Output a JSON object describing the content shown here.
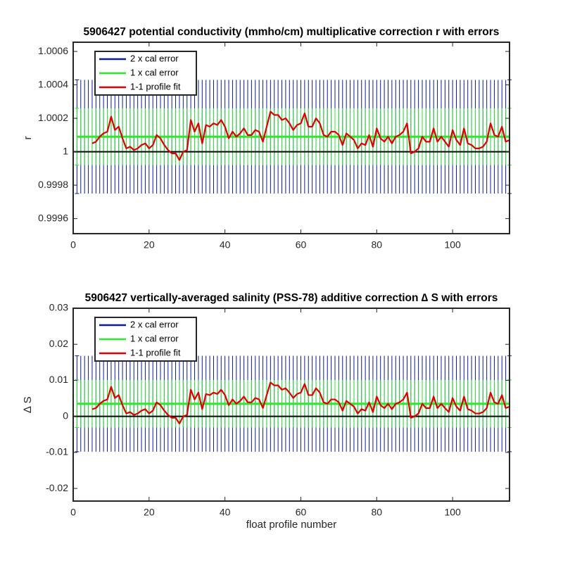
{
  "chart_data": [
    {
      "type": "line",
      "title": "5906427 potential conductivity (mmho/cm) multiplicative correction r with errors",
      "ylabel": "r",
      "x": [
        1,
        2,
        3,
        4,
        5,
        6,
        7,
        8,
        9,
        10,
        11,
        12,
        13,
        14,
        15,
        16,
        17,
        18,
        19,
        20,
        21,
        22,
        23,
        24,
        25,
        26,
        27,
        28,
        29,
        30,
        31,
        32,
        33,
        34,
        35,
        36,
        37,
        38,
        39,
        40,
        41,
        42,
        43,
        44,
        45,
        46,
        47,
        48,
        49,
        50,
        51,
        52,
        53,
        54,
        55,
        56,
        57,
        58,
        59,
        60,
        61,
        62,
        63,
        64,
        65,
        66,
        67,
        68,
        69,
        70,
        71,
        72,
        73,
        74,
        75,
        76,
        77,
        78,
        79,
        80,
        81,
        82,
        83,
        84,
        85,
        86,
        87,
        88,
        89,
        90,
        91,
        92,
        93,
        94,
        95,
        96,
        97,
        98,
        99,
        100,
        101,
        102,
        103,
        104,
        105,
        106,
        107,
        108,
        109,
        110,
        111,
        112,
        113,
        114,
        115
      ],
      "xlim": [
        0,
        115
      ],
      "xticks": [
        0,
        20,
        40,
        60,
        80,
        100
      ],
      "ylim": [
        0.99951,
        1.000655
      ],
      "yticks": [
        0.9996,
        0.9998,
        1,
        1.0002,
        1.0004,
        1.0006
      ],
      "hline": 1,
      "legend": "upper left",
      "series": [
        {
          "name": "2 x cal error",
          "color": "#0b1a9e",
          "error": 0.00034,
          "values": [
            1.00009,
            1.00009,
            1.00009,
            1.00009,
            1.00009,
            1.00009,
            1.00009,
            1.00009,
            1.00009,
            1.00009,
            1.00009,
            1.00009,
            1.00009,
            1.00009,
            1.00009,
            1.00009,
            1.00009,
            1.00009,
            1.00009,
            1.00009,
            1.00009,
            1.00009,
            1.00009,
            1.00009,
            1.00009,
            1.00009,
            1.00009,
            1.00009,
            1.00009,
            1.00009,
            1.00009,
            1.00009,
            1.00009,
            1.00009,
            1.00009,
            1.00009,
            1.00009,
            1.00009,
            1.00009,
            1.00009,
            1.00009,
            1.00009,
            1.00009,
            1.00009,
            1.00009,
            1.00009,
            1.00009,
            1.00009,
            1.00009,
            1.00009,
            1.00009,
            1.00009,
            1.00009,
            1.00009,
            1.00009,
            1.00009,
            1.00009,
            1.00009,
            1.00009,
            1.00009,
            1.00009,
            1.00009,
            1.00009,
            1.00009,
            1.00009,
            1.00009,
            1.00009,
            1.00009,
            1.00009,
            1.00009,
            1.00009,
            1.00009,
            1.00009,
            1.00009,
            1.00009,
            1.00009,
            1.00009,
            1.00009,
            1.00009,
            1.00009,
            1.00009,
            1.00009,
            1.00009,
            1.00009,
            1.00009,
            1.00009,
            1.00009,
            1.00009,
            1.00009,
            1.00009,
            1.00009,
            1.00009,
            1.00009,
            1.00009,
            1.00009,
            1.00009,
            1.00009,
            1.00009,
            1.00009,
            1.00009,
            1.00009,
            1.00009,
            1.00009,
            1.00009,
            1.00009,
            1.00009,
            1.00009,
            1.00009,
            1.00009,
            1.00009,
            1.00009,
            1.00009,
            1.00009,
            1.00009,
            1.00009
          ]
        },
        {
          "name": "1 x cal error",
          "color": "#2ee82e",
          "error": 0.00017,
          "values": [
            1.00009,
            1.00009,
            1.00009,
            1.00009,
            1.00009,
            1.00009,
            1.00009,
            1.00009,
            1.00009,
            1.00009,
            1.00009,
            1.00009,
            1.00009,
            1.00009,
            1.00009,
            1.00009,
            1.00009,
            1.00009,
            1.00009,
            1.00009,
            1.00009,
            1.00009,
            1.00009,
            1.00009,
            1.00009,
            1.00009,
            1.00009,
            1.00009,
            1.00009,
            1.00009,
            1.00009,
            1.00009,
            1.00009,
            1.00009,
            1.00009,
            1.00009,
            1.00009,
            1.00009,
            1.00009,
            1.00009,
            1.00009,
            1.00009,
            1.00009,
            1.00009,
            1.00009,
            1.00009,
            1.00009,
            1.00009,
            1.00009,
            1.00009,
            1.00009,
            1.00009,
            1.00009,
            1.00009,
            1.00009,
            1.00009,
            1.00009,
            1.00009,
            1.00009,
            1.00009,
            1.00009,
            1.00009,
            1.00009,
            1.00009,
            1.00009,
            1.00009,
            1.00009,
            1.00009,
            1.00009,
            1.00009,
            1.00009,
            1.00009,
            1.00009,
            1.00009,
            1.00009,
            1.00009,
            1.00009,
            1.00009,
            1.00009,
            1.00009,
            1.00009,
            1.00009,
            1.00009,
            1.00009,
            1.00009,
            1.00009,
            1.00009,
            1.00009,
            1.00009,
            1.00009,
            1.00009,
            1.00009,
            1.00009,
            1.00009,
            1.00009,
            1.00009,
            1.00009,
            1.00009,
            1.00009,
            1.00009,
            1.00009,
            1.00009,
            1.00009,
            1.00009,
            1.00009,
            1.00009,
            1.00009,
            1.00009,
            1.00009,
            1.00009,
            1.00009,
            1.00009,
            1.00009,
            1.00009,
            1.00009
          ]
        },
        {
          "name": "1-1 profile fit",
          "color": "#e00000",
          "values": [
            null,
            null,
            null,
            null,
            1.00005,
            1.00006,
            1.00009,
            1.00011,
            1.00012,
            1.00021,
            1.00013,
            1.00015,
            1.00008,
            1.00002,
            1.00003,
            1.00001,
            1.00002,
            1.00004,
            1.00005,
            1.00002,
            1.00004,
            1.0001,
            1.00008,
            1.00004,
            1.00001,
            0.99999,
            0.99999,
            0.99995,
            1,
            1.00001,
            1.00019,
            1.00012,
            1.00017,
            1.00005,
            1.00016,
            1.00015,
            1.00017,
            1.00016,
            1.00019,
            1.00015,
            1.00008,
            1.00012,
            1.00009,
            1.00011,
            1.00014,
            1.0001,
            1.0001,
            1.00013,
            1.00012,
            1.00006,
            1.00015,
            1.00024,
            1.00022,
            1.00022,
            1.00019,
            1.0002,
            1.00017,
            1.00013,
            1.00016,
            1.00017,
            1.00023,
            1.00015,
            1.00015,
            1.0002,
            1.00017,
            1.0001,
            1.00009,
            1.00012,
            1.00012,
            1.0001,
            1.00004,
            1.00011,
            1.00009,
            1.00007,
            1.00002,
            1.00005,
            1.00004,
            1.0001,
            1.00003,
            1.00014,
            1.00008,
            1.00006,
            1.00009,
            1.00005,
            1.00009,
            1.0001,
            1.00012,
            1.00017,
            0.99999,
            1,
            1.00002,
            1.00009,
            1.00006,
            1.00006,
            1.00014,
            1.00006,
            1.00009,
            1.00006,
            1.00003,
            1.00013,
            1.00007,
            1.00004,
            1.00014,
            1.00005,
            1.00004,
            1.00002,
            1.00002,
            1.00003,
            1.00006,
            1.00017,
            1.0001,
            1.00009,
            1.00015,
            1.00006,
            1.00007
          ]
        }
      ]
    },
    {
      "type": "line",
      "title": "5906427 vertically-averaged salinity (PSS-78) additive correction ∆ S with errors",
      "ylabel": "∆ S",
      "xlabel": "float profile number",
      "x": [
        1,
        2,
        3,
        4,
        5,
        6,
        7,
        8,
        9,
        10,
        11,
        12,
        13,
        14,
        15,
        16,
        17,
        18,
        19,
        20,
        21,
        22,
        23,
        24,
        25,
        26,
        27,
        28,
        29,
        30,
        31,
        32,
        33,
        34,
        35,
        36,
        37,
        38,
        39,
        40,
        41,
        42,
        43,
        44,
        45,
        46,
        47,
        48,
        49,
        50,
        51,
        52,
        53,
        54,
        55,
        56,
        57,
        58,
        59,
        60,
        61,
        62,
        63,
        64,
        65,
        66,
        67,
        68,
        69,
        70,
        71,
        72,
        73,
        74,
        75,
        76,
        77,
        78,
        79,
        80,
        81,
        82,
        83,
        84,
        85,
        86,
        87,
        88,
        89,
        90,
        91,
        92,
        93,
        94,
        95,
        96,
        97,
        98,
        99,
        100,
        101,
        102,
        103,
        104,
        105,
        106,
        107,
        108,
        109,
        110,
        111,
        112,
        113,
        114,
        115
      ],
      "xlim": [
        0,
        115
      ],
      "xticks": [
        0,
        20,
        40,
        60,
        80,
        100
      ],
      "ylim": [
        -0.0235,
        0.03
      ],
      "yticks": [
        -0.02,
        -0.01,
        0,
        0.01,
        0.02,
        0.03
      ],
      "hline": 0,
      "legend": "upper left",
      "series": [
        {
          "name": "2 x cal error",
          "color": "#0b1a9e",
          "error": 0.0133,
          "values": [
            0.0035,
            0.0035,
            0.0035,
            0.0035,
            0.0035,
            0.0035,
            0.0035,
            0.0035,
            0.0035,
            0.0035,
            0.0035,
            0.0035,
            0.0035,
            0.0035,
            0.0035,
            0.0035,
            0.0035,
            0.0035,
            0.0035,
            0.0035,
            0.0035,
            0.0035,
            0.0035,
            0.0035,
            0.0035,
            0.0035,
            0.0035,
            0.0035,
            0.0035,
            0.0035,
            0.0035,
            0.0035,
            0.0035,
            0.0035,
            0.0035,
            0.0035,
            0.0035,
            0.0035,
            0.0035,
            0.0035,
            0.0035,
            0.0035,
            0.0035,
            0.0035,
            0.0035,
            0.0035,
            0.0035,
            0.0035,
            0.0035,
            0.0035,
            0.0035,
            0.0035,
            0.0035,
            0.0035,
            0.0035,
            0.0035,
            0.0035,
            0.0035,
            0.0035,
            0.0035,
            0.0035,
            0.0035,
            0.0035,
            0.0035,
            0.0035,
            0.0035,
            0.0035,
            0.0035,
            0.0035,
            0.0035,
            0.0035,
            0.0035,
            0.0035,
            0.0035,
            0.0035,
            0.0035,
            0.0035,
            0.0035,
            0.0035,
            0.0035,
            0.0035,
            0.0035,
            0.0035,
            0.0035,
            0.0035,
            0.0035,
            0.0035,
            0.0035,
            0.0035,
            0.0035,
            0.0035,
            0.0035,
            0.0035,
            0.0035,
            0.0035,
            0.0035,
            0.0035,
            0.0035,
            0.0035,
            0.0035,
            0.0035,
            0.0035,
            0.0035,
            0.0035,
            0.0035,
            0.0035,
            0.0035,
            0.0035,
            0.0035,
            0.0035,
            0.0035,
            0.0035,
            0.0035,
            0.0035,
            0.0035
          ]
        },
        {
          "name": "1 x cal error",
          "color": "#2ee82e",
          "error": 0.0066,
          "values": [
            0.0035,
            0.0035,
            0.0035,
            0.0035,
            0.0035,
            0.0035,
            0.0035,
            0.0035,
            0.0035,
            0.0035,
            0.0035,
            0.0035,
            0.0035,
            0.0035,
            0.0035,
            0.0035,
            0.0035,
            0.0035,
            0.0035,
            0.0035,
            0.0035,
            0.0035,
            0.0035,
            0.0035,
            0.0035,
            0.0035,
            0.0035,
            0.0035,
            0.0035,
            0.0035,
            0.0035,
            0.0035,
            0.0035,
            0.0035,
            0.0035,
            0.0035,
            0.0035,
            0.0035,
            0.0035,
            0.0035,
            0.0035,
            0.0035,
            0.0035,
            0.0035,
            0.0035,
            0.0035,
            0.0035,
            0.0035,
            0.0035,
            0.0035,
            0.0035,
            0.0035,
            0.0035,
            0.0035,
            0.0035,
            0.0035,
            0.0035,
            0.0035,
            0.0035,
            0.0035,
            0.0035,
            0.0035,
            0.0035,
            0.0035,
            0.0035,
            0.0035,
            0.0035,
            0.0035,
            0.0035,
            0.0035,
            0.0035,
            0.0035,
            0.0035,
            0.0035,
            0.0035,
            0.0035,
            0.0035,
            0.0035,
            0.0035,
            0.0035,
            0.0035,
            0.0035,
            0.0035,
            0.0035,
            0.0035,
            0.0035,
            0.0035,
            0.0035,
            0.0035,
            0.0035,
            0.0035,
            0.0035,
            0.0035,
            0.0035,
            0.0035,
            0.0035,
            0.0035,
            0.0035,
            0.0035,
            0.0035,
            0.0035,
            0.0035,
            0.0035,
            0.0035,
            0.0035,
            0.0035,
            0.0035,
            0.0035,
            0.0035,
            0.0035,
            0.0035,
            0.0035,
            0.0035,
            0.0035,
            0.0035
          ]
        },
        {
          "name": "1-1 profile fit",
          "color": "#e00000",
          "values": [
            null,
            null,
            null,
            null,
            0.002,
            0.0023,
            0.0035,
            0.0043,
            0.0047,
            0.0082,
            0.0051,
            0.0059,
            0.0031,
            0.0008,
            0.0012,
            0.0004,
            0.0008,
            0.0016,
            0.002,
            0.0008,
            0.0016,
            0.0039,
            0.0031,
            0.0016,
            0.0004,
            -0.0004,
            -0.0004,
            -0.002,
            0,
            0.0004,
            0.0074,
            0.0047,
            0.0066,
            0.002,
            0.0062,
            0.0059,
            0.0066,
            0.0062,
            0.0074,
            0.0059,
            0.0031,
            0.0047,
            0.0035,
            0.0043,
            0.0055,
            0.0039,
            0.0039,
            0.0051,
            0.0047,
            0.0023,
            0.0059,
            0.0094,
            0.0086,
            0.0086,
            0.0074,
            0.0078,
            0.0066,
            0.0051,
            0.0062,
            0.0066,
            0.009,
            0.0059,
            0.0059,
            0.0078,
            0.0066,
            0.0039,
            0.0035,
            0.0047,
            0.0047,
            0.0039,
            0.0016,
            0.0043,
            0.0035,
            0.0027,
            0.0008,
            0.002,
            0.0016,
            0.0039,
            0.0012,
            0.0055,
            0.0031,
            0.0023,
            0.0035,
            0.002,
            0.0035,
            0.0039,
            0.0047,
            0.0066,
            -0.0004,
            0,
            0.0008,
            0.0035,
            0.0023,
            0.0023,
            0.0055,
            0.0023,
            0.0035,
            0.0023,
            0.0012,
            0.0051,
            0.0027,
            0.0016,
            0.0055,
            0.002,
            0.0016,
            0.0008,
            0.0008,
            0.0012,
            0.0023,
            0.0066,
            0.0039,
            0.0035,
            0.0059,
            0.0023,
            0.0027
          ]
        }
      ]
    }
  ]
}
